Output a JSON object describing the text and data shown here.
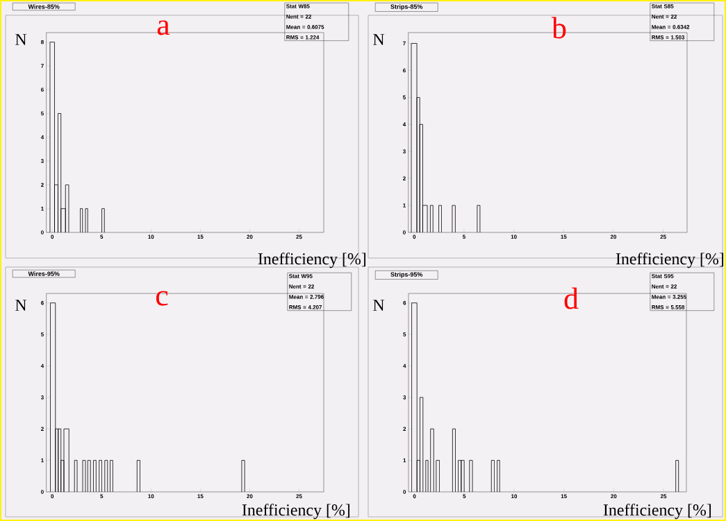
{
  "chart_data": [
    {
      "type": "histogram",
      "title": "Wires-85%",
      "xlabel": "Inefficiency [%]",
      "ylabel": "N",
      "color": "#000000",
      "bins": [
        -0.23,
        0.23,
        0.58,
        0.88,
        1.34,
        1.67,
        2.83,
        3.06,
        3.36,
        3.59,
        5.02,
        5.28
      ],
      "values": [
        8,
        2,
        5,
        1,
        2,
        0,
        1,
        0,
        1,
        0,
        1
      ],
      "xlim": [
        -0.6,
        27.5
      ],
      "ylim": [
        0,
        8.4
      ],
      "xticks": [
        0,
        5,
        10,
        15,
        20,
        25
      ],
      "yticks": [
        0,
        1,
        2,
        3,
        4,
        5,
        6,
        7,
        8
      ],
      "annotations": [
        "a",
        "Stat W85",
        "Nent = 22",
        "Mean  = 0.6075",
        "RMS   = 1.224"
      ]
    },
    {
      "type": "histogram",
      "title": "Strips-85%",
      "xlabel": "Inefficiency [%]",
      "ylabel": "N",
      "color": "#000000",
      "bins": [
        -0.3,
        0.26,
        0.55,
        0.85,
        1.31,
        1.61,
        1.88,
        2.46,
        2.74,
        3.81,
        4.12,
        6.32,
        6.6
      ],
      "values": [
        7,
        5,
        4,
        1,
        0,
        1,
        0,
        1,
        0,
        1,
        0,
        1
      ],
      "xlim": [
        -0.6,
        27.4
      ],
      "ylim": [
        0,
        7.4
      ],
      "xticks": [
        0,
        5,
        10,
        15,
        20,
        25
      ],
      "yticks": [
        0,
        1,
        2,
        3,
        4,
        5,
        6,
        7
      ],
      "annotations": [
        "b",
        "Stat S85",
        "Nent = 22",
        "Mean  = 0.6342",
        "RMS   = 1.503"
      ]
    },
    {
      "type": "histogram",
      "title": "Wires-95%",
      "xlabel": "Inefficiency [%]",
      "ylabel": "N",
      "color": "#000000",
      "bins": [
        -0.19,
        0.32,
        0.6,
        0.88,
        1.18,
        1.69,
        2.25,
        2.52,
        3.08,
        3.36,
        3.59,
        3.87,
        4.17,
        4.44,
        4.75,
        5.02,
        5.32,
        5.6,
        5.86,
        6.13,
        8.59,
        8.89,
        19.19,
        19.49
      ],
      "values": [
        6,
        2,
        2,
        1,
        2,
        0,
        1,
        0,
        1,
        0,
        1,
        0,
        1,
        0,
        1,
        0,
        1,
        0,
        1,
        0,
        1,
        0,
        1
      ],
      "xlim": [
        -0.6,
        27.5
      ],
      "ylim": [
        0,
        6.3
      ],
      "xticks": [
        0,
        5,
        10,
        15,
        20,
        25
      ],
      "yticks": [
        0,
        1,
        2,
        3,
        4,
        5,
        6
      ],
      "annotations": [
        "c",
        "Stat W95",
        "Nent = 22",
        "Mean  = 2.796",
        "RMS   = 4.207"
      ]
    },
    {
      "type": "histogram",
      "title": "Strips-95%",
      "xlabel": "Inefficiency [%]",
      "ylabel": "N",
      "color": "#000000",
      "bins": [
        -0.28,
        0.25,
        0.55,
        0.85,
        1.13,
        1.36,
        1.61,
        1.93,
        2.18,
        2.51,
        3.82,
        4.11,
        4.39,
        4.69,
        4.99,
        5.52,
        5.82,
        7.72,
        8.02,
        8.3,
        8.55,
        26.23,
        26.51
      ],
      "values": [
        6,
        1,
        3,
        0,
        1,
        0,
        2,
        0,
        1,
        0,
        2,
        0,
        1,
        1,
        0,
        1,
        0,
        1,
        0,
        1,
        0,
        1
      ],
      "xlim": [
        -0.6,
        27.3
      ],
      "ylim": [
        0,
        6.3
      ],
      "xticks": [
        0,
        5,
        10,
        15,
        20,
        25
      ],
      "yticks": [
        0,
        1,
        2,
        3,
        4,
        5,
        6
      ],
      "annotations": [
        "d",
        "Stat S95",
        "Nent = 22",
        "Mean  = 3.255",
        "RMS   = 5.558"
      ]
    }
  ]
}
